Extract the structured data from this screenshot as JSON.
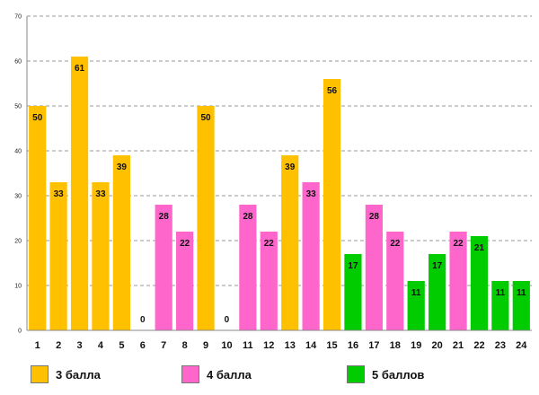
{
  "chart_data": {
    "type": "bar",
    "title": "",
    "xlabel": "",
    "ylabel": "",
    "ylim": [
      0,
      70
    ],
    "yticks": [
      0,
      10,
      20,
      30,
      40,
      50,
      60,
      70
    ],
    "grid": "horizontal-dashed",
    "categories": [
      "1",
      "2",
      "3",
      "4",
      "5",
      "6",
      "7",
      "8",
      "9",
      "10",
      "11",
      "12",
      "13",
      "14",
      "15",
      "16",
      "17",
      "18",
      "19",
      "20",
      "21",
      "22",
      "23",
      "24"
    ],
    "values": [
      50,
      33,
      61,
      33,
      39,
      0,
      28,
      22,
      50,
      0,
      28,
      22,
      39,
      33,
      56,
      17,
      28,
      22,
      11,
      17,
      22,
      21,
      11,
      11
    ],
    "groups": [
      0,
      0,
      0,
      0,
      0,
      0,
      1,
      1,
      0,
      0,
      1,
      1,
      0,
      1,
      0,
      2,
      1,
      1,
      2,
      2,
      1,
      2,
      2,
      2
    ],
    "series": [
      {
        "name": "3 балла",
        "color": "#FFC000"
      },
      {
        "name": "4 балла",
        "color": "#FF66CC"
      },
      {
        "name": "5 баллов",
        "color": "#00CC00"
      }
    ],
    "legend_position": "bottom"
  }
}
